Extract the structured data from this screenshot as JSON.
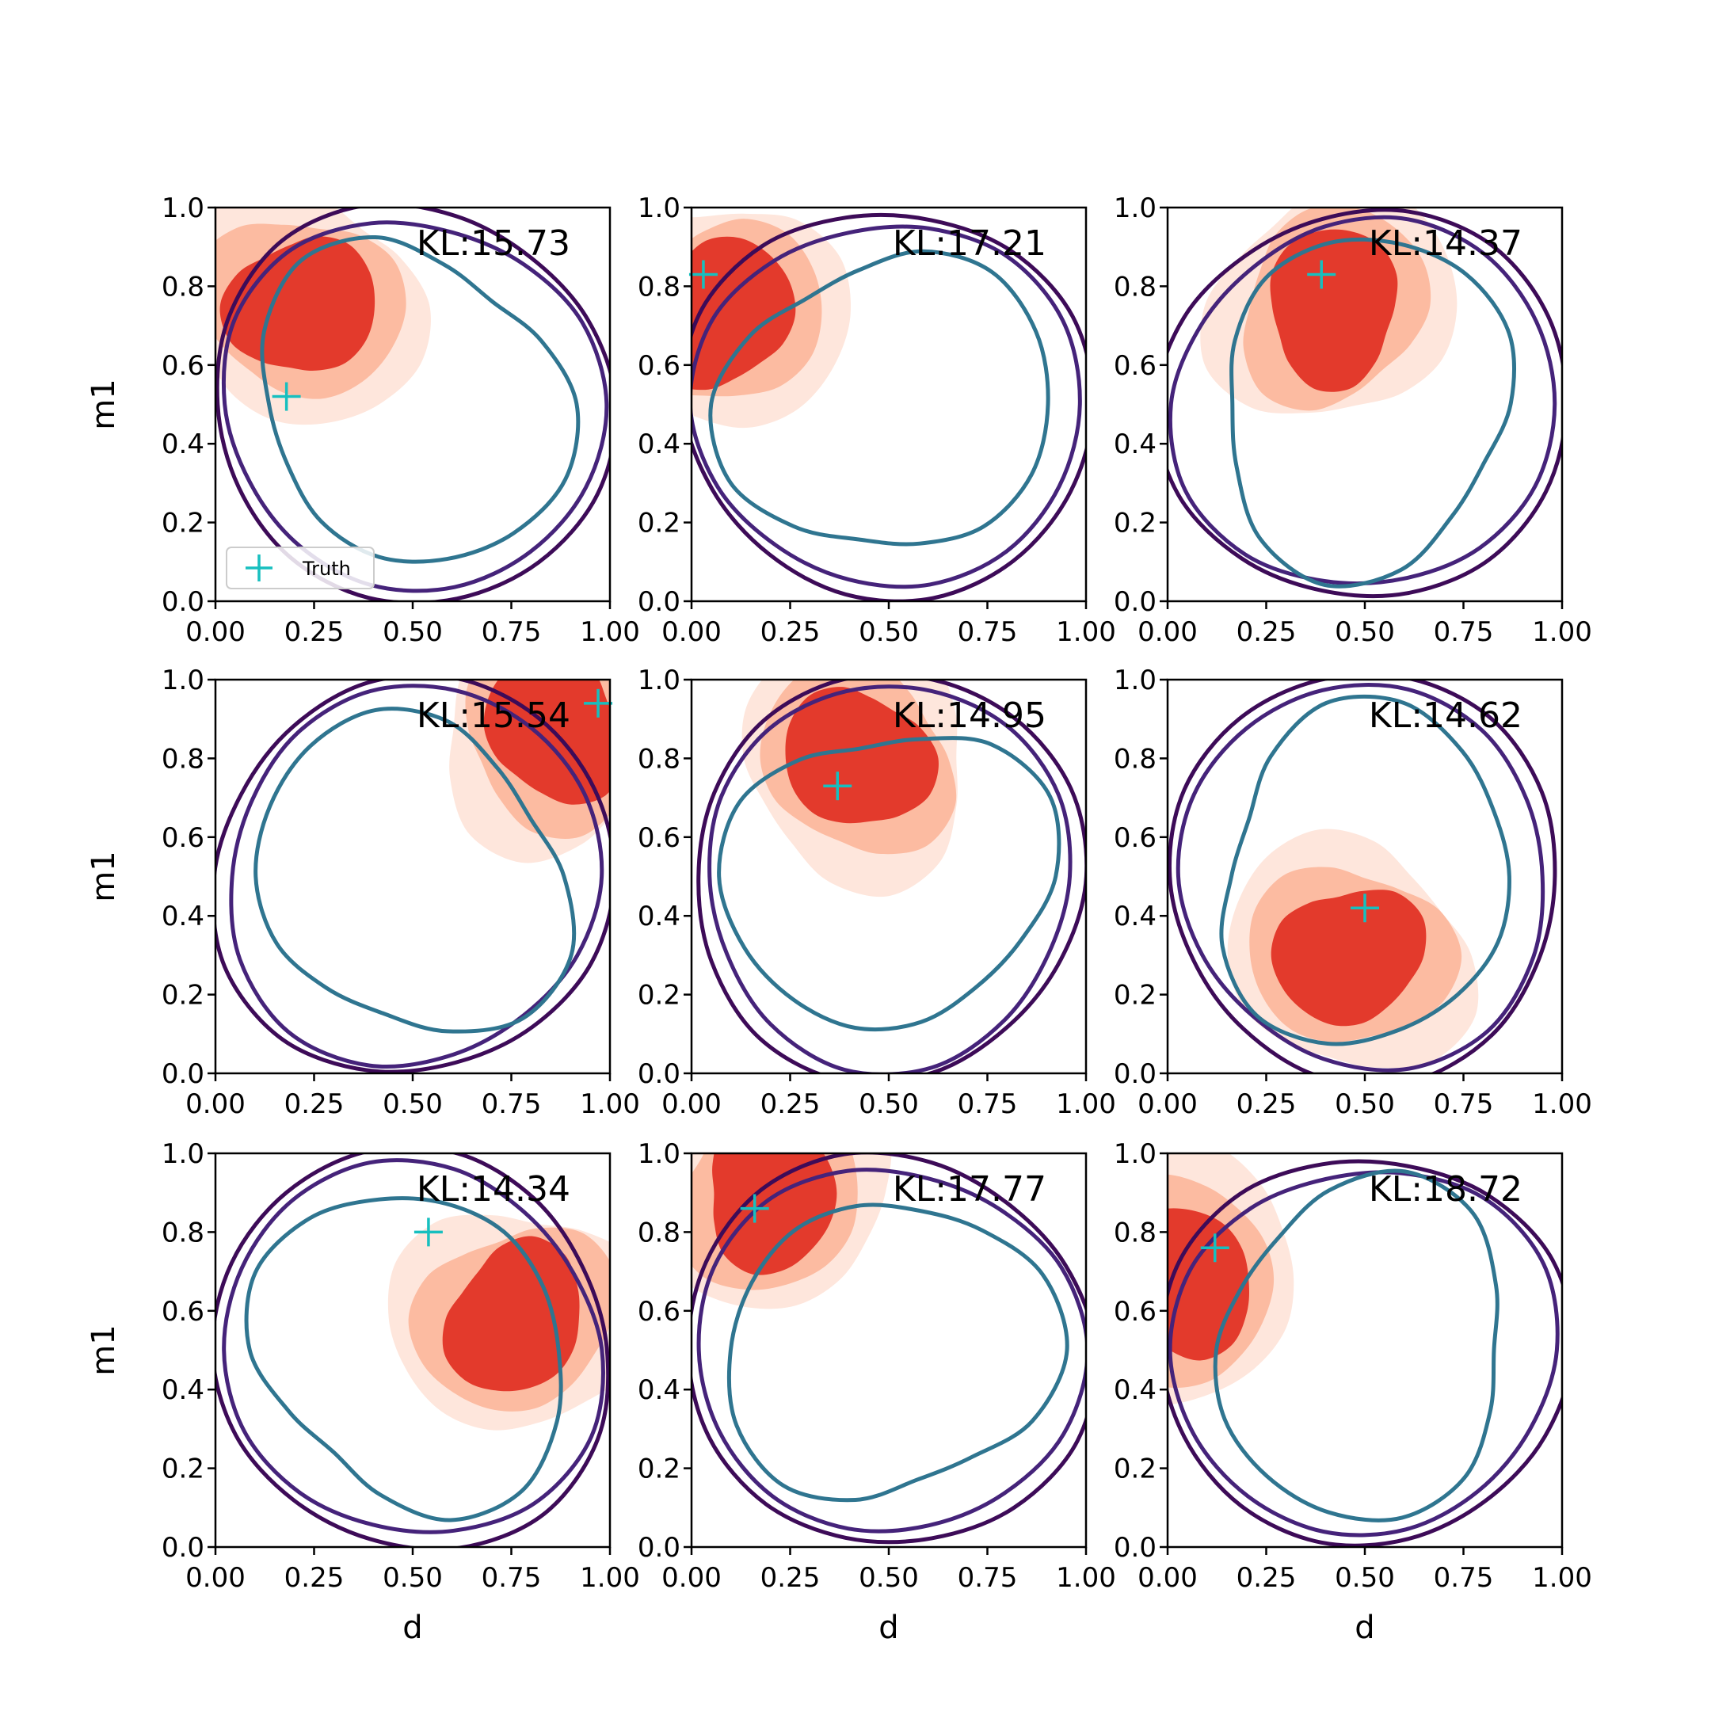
{
  "figure": {
    "x_axis_label": "d",
    "y_axis_label": "m1",
    "legend": {
      "label": "Truth",
      "placement": "lower-left of first panel",
      "marker_color": "#17bfbf"
    }
  },
  "colors": {
    "truth_marker": "#17bfbf",
    "posterior_fill_levels": [
      "#fee6dc",
      "#fcbba1",
      "#e33a2c"
    ],
    "prior_contours": [
      "#3d0b58",
      "#45237a",
      "#2f7590"
    ],
    "frame": "#000000"
  },
  "chart_data": [
    {
      "type": "contour",
      "panel": 1,
      "kl_label": "KL:15.73",
      "truth": {
        "d": 0.18,
        "m1": 0.52
      },
      "xlim": [
        0,
        1
      ],
      "ylim": [
        0,
        1
      ],
      "xticks": [
        "0.00",
        "0.25",
        "0.50",
        "0.75",
        "1.00"
      ],
      "yticks": [
        "0.0",
        "0.2",
        "0.4",
        "0.6",
        "0.8",
        "1.0"
      ],
      "posterior_center": [
        0.22,
        0.75
      ],
      "show_legend": true
    },
    {
      "type": "contour",
      "panel": 2,
      "kl_label": "KL:17.21",
      "truth": {
        "d": 0.03,
        "m1": 0.83
      },
      "xlim": [
        0,
        1
      ],
      "ylim": [
        0,
        1
      ],
      "xticks": [
        "0.00",
        "0.25",
        "0.50",
        "0.75",
        "1.00"
      ],
      "yticks": [
        "0.0",
        "0.2",
        "0.4",
        "0.6",
        "0.8",
        "1.0"
      ],
      "posterior_center": [
        0.08,
        0.73
      ]
    },
    {
      "type": "contour",
      "panel": 3,
      "kl_label": "KL:14.37",
      "truth": {
        "d": 0.39,
        "m1": 0.83
      },
      "xlim": [
        0,
        1
      ],
      "ylim": [
        0,
        1
      ],
      "xticks": [
        "0.00",
        "0.25",
        "0.50",
        "0.75",
        "1.00"
      ],
      "yticks": [
        "0.0",
        "0.2",
        "0.4",
        "0.6",
        "0.8",
        "1.0"
      ],
      "posterior_center": [
        0.42,
        0.75
      ]
    },
    {
      "type": "contour",
      "panel": 4,
      "kl_label": "KL:15.54",
      "truth": {
        "d": 0.97,
        "m1": 0.94
      },
      "xlim": [
        0,
        1
      ],
      "ylim": [
        0,
        1
      ],
      "xticks": [
        "0.00",
        "0.25",
        "0.50",
        "0.75",
        "1.00"
      ],
      "yticks": [
        "0.0",
        "0.2",
        "0.4",
        "0.6",
        "0.8",
        "1.0"
      ],
      "posterior_center": [
        0.86,
        0.88
      ]
    },
    {
      "type": "contour",
      "panel": 5,
      "kl_label": "KL:14.95",
      "truth": {
        "d": 0.37,
        "m1": 0.73
      },
      "xlim": [
        0,
        1
      ],
      "ylim": [
        0,
        1
      ],
      "xticks": [
        "0.00",
        "0.25",
        "0.50",
        "0.75",
        "1.00"
      ],
      "yticks": [
        "0.0",
        "0.2",
        "0.4",
        "0.6",
        "0.8",
        "1.0"
      ],
      "posterior_center": [
        0.42,
        0.8
      ]
    },
    {
      "type": "contour",
      "panel": 6,
      "kl_label": "KL:14.62",
      "truth": {
        "d": 0.5,
        "m1": 0.42
      },
      "xlim": [
        0,
        1
      ],
      "ylim": [
        0,
        1
      ],
      "xticks": [
        "0.00",
        "0.25",
        "0.50",
        "0.75",
        "1.00"
      ],
      "yticks": [
        "0.0",
        "0.2",
        "0.4",
        "0.6",
        "0.8",
        "1.0"
      ],
      "posterior_center": [
        0.46,
        0.3
      ]
    },
    {
      "type": "contour",
      "panel": 7,
      "kl_label": "KL:14.34",
      "truth": {
        "d": 0.54,
        "m1": 0.8
      },
      "xlim": [
        0,
        1
      ],
      "ylim": [
        0,
        1
      ],
      "xticks": [
        "0.00",
        "0.25",
        "0.50",
        "0.75",
        "1.00"
      ],
      "yticks": [
        "0.0",
        "0.2",
        "0.4",
        "0.6",
        "0.8",
        "1.0"
      ],
      "posterior_center": [
        0.76,
        0.58
      ]
    },
    {
      "type": "contour",
      "panel": 8,
      "kl_label": "KL:17.77",
      "truth": {
        "d": 0.16,
        "m1": 0.86
      },
      "xlim": [
        0,
        1
      ],
      "ylim": [
        0,
        1
      ],
      "xticks": [
        "0.00",
        "0.25",
        "0.50",
        "0.75",
        "1.00"
      ],
      "yticks": [
        "0.0",
        "0.2",
        "0.4",
        "0.6",
        "0.8",
        "1.0"
      ],
      "posterior_center": [
        0.2,
        0.9
      ]
    },
    {
      "type": "contour",
      "panel": 9,
      "kl_label": "KL:18.72",
      "truth": {
        "d": 0.12,
        "m1": 0.76
      },
      "xlim": [
        0,
        1
      ],
      "ylim": [
        0,
        1
      ],
      "xticks": [
        "0.00",
        "0.25",
        "0.50",
        "0.75",
        "1.00"
      ],
      "yticks": [
        "0.0",
        "0.2",
        "0.4",
        "0.6",
        "0.8",
        "1.0"
      ],
      "posterior_center": [
        0.04,
        0.68
      ]
    }
  ]
}
